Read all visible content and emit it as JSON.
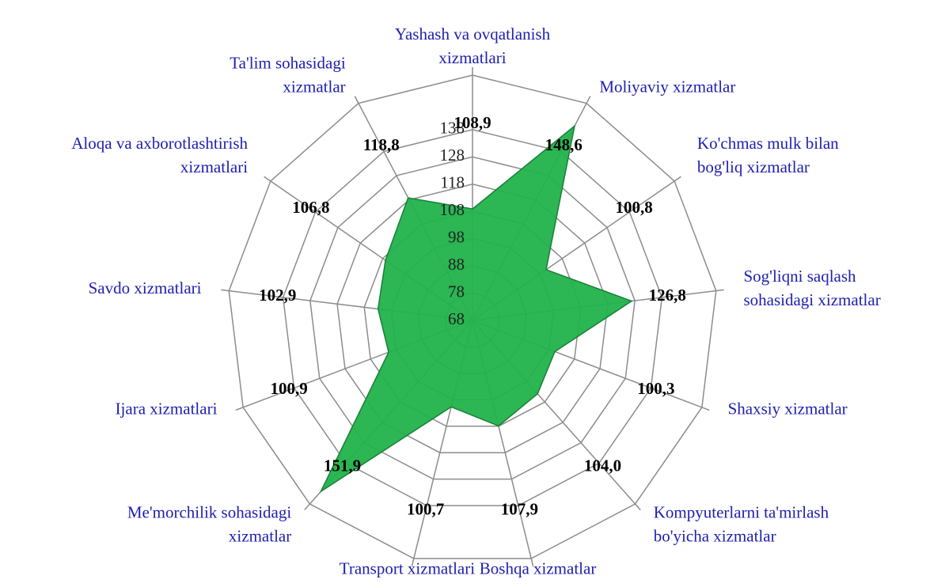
{
  "chart_data": {
    "type": "radar",
    "categories": [
      [
        "Yashash va ovqatlanish",
        "xizmatlari"
      ],
      [
        "Moliyaviy xizmatlar"
      ],
      [
        "Ko'chmas mulk bilan",
        "bog'liq xizmatlar"
      ],
      [
        "Sog'liqni saqlash",
        "sohasidagi xizmatlar"
      ],
      [
        "Shaxsiy xizmatlar"
      ],
      [
        "Kompyuterlarni ta'mirlash",
        "bo'yicha xizmatlar"
      ],
      [
        "Boshqa xizmatlar"
      ],
      [
        "Transport xizmatlari"
      ],
      [
        "Me'morchilik sohasidagi",
        "xizmatlar"
      ],
      [
        "Ijara xizmatlari"
      ],
      [
        "Savdo xizmatlari"
      ],
      [
        "Aloqa va axborotlashtirish",
        "xizmatlari"
      ],
      [
        "Ta'lim sohasidagi",
        "xizmatlar"
      ]
    ],
    "values": [
      108.9,
      148.6,
      100.8,
      126.8,
      100.3,
      104.0,
      107.9,
      100.7,
      151.9,
      100.9,
      102.9,
      106.8,
      118.8
    ],
    "value_labels": [
      "108,9",
      "148,6",
      "100,8",
      "126,8",
      "100,3",
      "104,0",
      "107,9",
      "100,7",
      "151,9",
      "100,9",
      "102,9",
      "106,8",
      "118,8"
    ],
    "color": "#21b24b",
    "ylim": [
      68,
      158
    ],
    "yticks": [
      68,
      78,
      88,
      98,
      108,
      118,
      128,
      138
    ],
    "grid": true
  }
}
